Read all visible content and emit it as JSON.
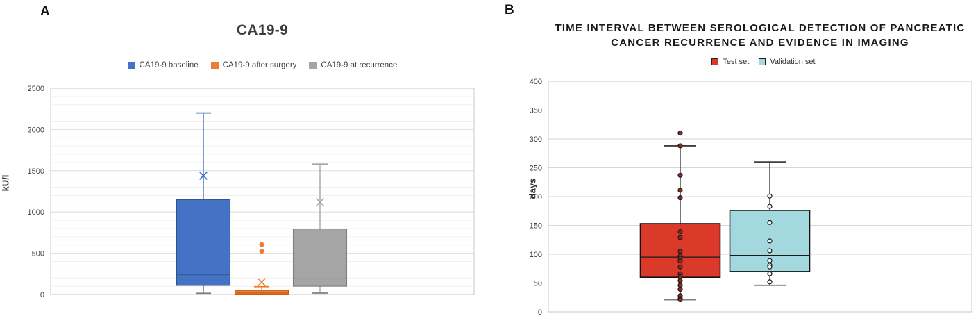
{
  "panels": {
    "a": {
      "panel_label": "A"
    },
    "b": {
      "panel_label": "B"
    }
  },
  "chart_data": [
    {
      "type": "box",
      "title": "CA19-9",
      "ylabel": "kU/l",
      "ylim": [
        0,
        2500
      ],
      "ytick_step": 500,
      "minor_grid_step": 100,
      "grid": true,
      "legend_position": "top",
      "series": [
        {
          "name": "CA19-9 baseline",
          "color": "#4472C4",
          "edge": "#31538F",
          "min": 15,
          "q1": 110,
          "median": 240,
          "q3": 1150,
          "max": 2200,
          "mean": 1440,
          "outliers": []
        },
        {
          "name": "CA19-9 after surgery",
          "color": "#ED7D31",
          "edge": "#C55A11",
          "min": 0,
          "q1": 5,
          "median": 18,
          "q3": 50,
          "max": 95,
          "mean": 150,
          "outliers": [
            605,
            525
          ]
        },
        {
          "name": "CA19-9 at recurrence",
          "color": "#A5A5A5",
          "edge": "#7F7F7F",
          "min": 17,
          "q1": 100,
          "median": 190,
          "q3": 795,
          "max": 1580,
          "mean": 1120,
          "outliers": []
        }
      ]
    },
    {
      "type": "box",
      "title": "TIME INTERVAL BETWEEN SEROLOGICAL DETECTION OF PANCREATIC CANCER RECURRENCE AND EVIDENCE IN IMAGING",
      "ylabel": "days",
      "ylim": [
        0,
        400
      ],
      "ytick_step": 50,
      "grid": true,
      "legend_position": "top",
      "series": [
        {
          "name": "Test set",
          "color": "#DB3A2B",
          "edge": "#141414",
          "point_fill": "#8F2A20",
          "min": 21,
          "q1": 60,
          "median": 95,
          "q3": 153,
          "max": 288,
          "outliers": [
            310
          ],
          "points": [
            288,
            237,
            211,
            198,
            139,
            129,
            105,
            97,
            93,
            88,
            78,
            66,
            61,
            54,
            46,
            39,
            28,
            23,
            21
          ]
        },
        {
          "name": "Validation set",
          "color": "#A2D8DE",
          "edge": "#141414",
          "point_fill": "#EAF6F7",
          "min": 46,
          "q1": 70,
          "median": 98,
          "q3": 176,
          "max": 260,
          "outliers": [],
          "points": [
            201,
            183,
            155,
            123,
            106,
            89,
            81,
            78,
            66,
            52
          ]
        }
      ]
    }
  ]
}
